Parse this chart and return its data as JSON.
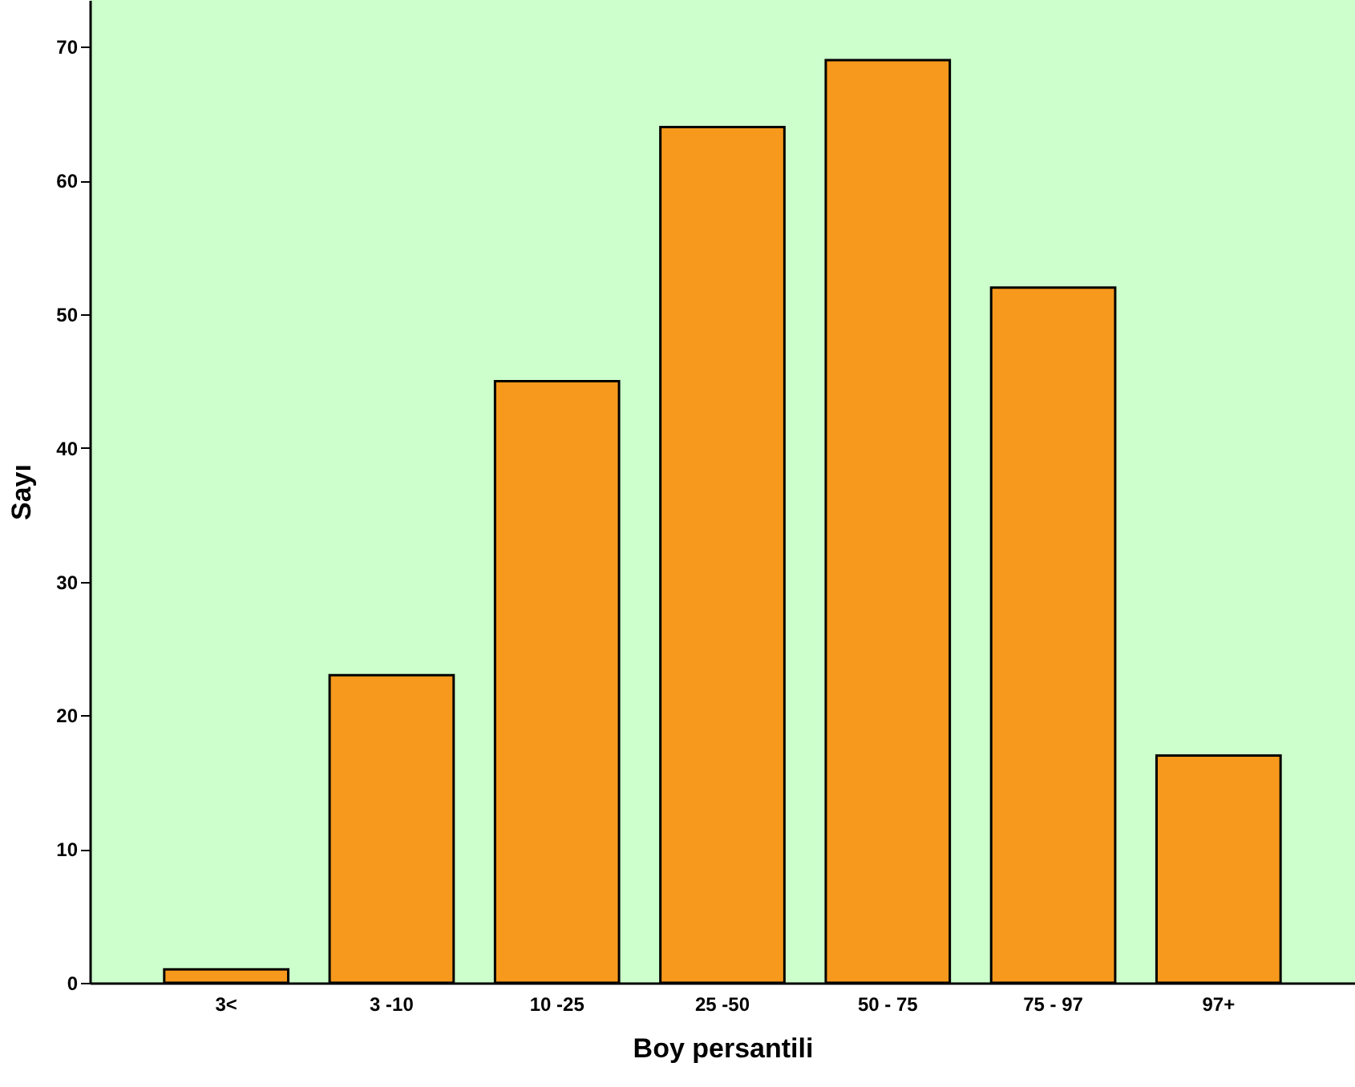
{
  "chart_data": {
    "type": "bar",
    "xlabel": "Boy persantili",
    "ylabel": "Sayı",
    "categories": [
      "3<",
      "3 -10",
      "10 -25",
      "25 -50",
      "50 - 75",
      "75 - 97",
      "97+"
    ],
    "values": [
      1,
      23,
      45,
      64,
      69,
      52,
      17
    ],
    "color": "#f7991c",
    "ylim": [
      0,
      73.5
    ],
    "yticks": [
      0,
      10,
      20,
      30,
      40,
      50,
      60,
      70
    ],
    "grid": false
  }
}
